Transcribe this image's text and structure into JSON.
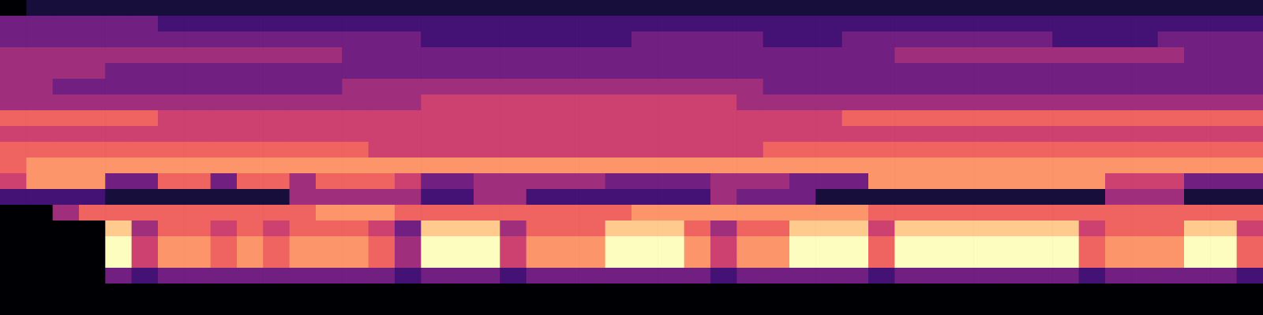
{
  "chart_data": {
    "type": "heatmap",
    "tick_labels": false,
    "zlim": [
      0,
      9
    ],
    "cells": [
      [
        0,
        1,
        1,
        1,
        1,
        1,
        1,
        1,
        1,
        1,
        1,
        1,
        1,
        1,
        1,
        1,
        1,
        1,
        1,
        1,
        1,
        1,
        1,
        1,
        1,
        1,
        1,
        1,
        1,
        1,
        1,
        1,
        1,
        1,
        1,
        1,
        1,
        1,
        1,
        1,
        1,
        1,
        1,
        1,
        1,
        1,
        1,
        1
      ],
      [
        3,
        3,
        3,
        3,
        3,
        3,
        2,
        2,
        2,
        2,
        2,
        2,
        2,
        2,
        2,
        2,
        2,
        2,
        2,
        2,
        2,
        2,
        2,
        2,
        2,
        2,
        2,
        2,
        2,
        2,
        2,
        2,
        2,
        2,
        2,
        2,
        2,
        2,
        2,
        2,
        2,
        2,
        2,
        2,
        2,
        2,
        2,
        2
      ],
      [
        3,
        3,
        3,
        3,
        3,
        3,
        3,
        3,
        3,
        3,
        3,
        3,
        3,
        3,
        3,
        3,
        2,
        2,
        2,
        2,
        2,
        2,
        2,
        2,
        3,
        3,
        3,
        3,
        3,
        2,
        2,
        2,
        3,
        3,
        3,
        3,
        3,
        3,
        3,
        3,
        2,
        2,
        2,
        2,
        3,
        3,
        3,
        3
      ],
      [
        4,
        4,
        4,
        4,
        4,
        4,
        4,
        4,
        4,
        4,
        4,
        4,
        4,
        3,
        3,
        3,
        3,
        3,
        3,
        3,
        3,
        3,
        3,
        3,
        3,
        3,
        3,
        3,
        3,
        3,
        3,
        3,
        3,
        3,
        4,
        4,
        4,
        4,
        4,
        4,
        4,
        4,
        4,
        4,
        4,
        3,
        3,
        3
      ],
      [
        4,
        4,
        4,
        4,
        3,
        3,
        3,
        3,
        3,
        3,
        3,
        3,
        3,
        3,
        3,
        3,
        3,
        3,
        3,
        3,
        3,
        3,
        3,
        3,
        3,
        3,
        3,
        3,
        3,
        3,
        3,
        3,
        3,
        3,
        3,
        3,
        3,
        3,
        3,
        3,
        3,
        3,
        3,
        3,
        3,
        3,
        3,
        3
      ],
      [
        4,
        4,
        3,
        3,
        3,
        3,
        3,
        3,
        3,
        3,
        3,
        3,
        3,
        4,
        4,
        4,
        4,
        4,
        4,
        4,
        4,
        4,
        4,
        4,
        4,
        4,
        4,
        4,
        4,
        3,
        3,
        3,
        3,
        3,
        3,
        3,
        3,
        3,
        3,
        3,
        3,
        3,
        3,
        3,
        3,
        3,
        3,
        3
      ],
      [
        4,
        4,
        4,
        4,
        4,
        4,
        4,
        4,
        4,
        4,
        4,
        4,
        4,
        4,
        4,
        4,
        5,
        5,
        5,
        5,
        5,
        5,
        5,
        5,
        5,
        5,
        5,
        5,
        4,
        4,
        4,
        4,
        4,
        4,
        4,
        4,
        4,
        4,
        4,
        4,
        4,
        4,
        4,
        4,
        4,
        4,
        4,
        4
      ],
      [
        6,
        6,
        6,
        6,
        6,
        6,
        5,
        5,
        5,
        5,
        5,
        5,
        5,
        5,
        5,
        5,
        5,
        5,
        5,
        5,
        5,
        5,
        5,
        5,
        5,
        5,
        5,
        5,
        5,
        5,
        5,
        5,
        6,
        6,
        6,
        6,
        6,
        6,
        6,
        6,
        6,
        6,
        6,
        6,
        6,
        6,
        6,
        6
      ],
      [
        5,
        5,
        5,
        5,
        5,
        5,
        5,
        5,
        5,
        5,
        5,
        5,
        5,
        5,
        5,
        5,
        5,
        5,
        5,
        5,
        5,
        5,
        5,
        5,
        5,
        5,
        5,
        5,
        5,
        5,
        5,
        5,
        5,
        5,
        5,
        5,
        5,
        5,
        5,
        5,
        5,
        5,
        5,
        5,
        5,
        5,
        5,
        5
      ],
      [
        6,
        6,
        6,
        6,
        6,
        6,
        6,
        6,
        6,
        6,
        6,
        6,
        6,
        6,
        5,
        5,
        5,
        5,
        5,
        5,
        5,
        5,
        5,
        5,
        5,
        5,
        5,
        5,
        5,
        6,
        6,
        6,
        6,
        6,
        6,
        6,
        6,
        6,
        6,
        6,
        6,
        6,
        6,
        6,
        6,
        6,
        6,
        6
      ],
      [
        6,
        7,
        7,
        7,
        7,
        7,
        7,
        7,
        7,
        7,
        7,
        7,
        7,
        7,
        7,
        7,
        7,
        7,
        7,
        7,
        7,
        7,
        7,
        7,
        7,
        7,
        7,
        7,
        7,
        7,
        7,
        7,
        7,
        7,
        7,
        7,
        7,
        7,
        7,
        7,
        7,
        7,
        7,
        7,
        7,
        7,
        7,
        7
      ],
      [
        5,
        7,
        7,
        7,
        3,
        3,
        6,
        6,
        3,
        6,
        6,
        4,
        6,
        6,
        6,
        5,
        3,
        3,
        4,
        4,
        4,
        4,
        4,
        3,
        3,
        3,
        3,
        4,
        4,
        4,
        3,
        3,
        3,
        7,
        7,
        7,
        7,
        7,
        7,
        7,
        7,
        7,
        5,
        5,
        5,
        3,
        3,
        3
      ],
      [
        2,
        2,
        2,
        2,
        1,
        1,
        1,
        1,
        1,
        1,
        1,
        4,
        4,
        4,
        4,
        4,
        2,
        2,
        4,
        4,
        2,
        2,
        2,
        2,
        2,
        2,
        2,
        4,
        3,
        3,
        3,
        1,
        1,
        1,
        1,
        1,
        1,
        1,
        1,
        1,
        1,
        1,
        4,
        4,
        4,
        1,
        1,
        1
      ],
      [
        0,
        0,
        4,
        6,
        6,
        6,
        6,
        6,
        6,
        6,
        6,
        6,
        7,
        7,
        7,
        6,
        6,
        6,
        6,
        6,
        6,
        6,
        6,
        6,
        7,
        7,
        7,
        7,
        7,
        7,
        7,
        7,
        7,
        6,
        6,
        6,
        6,
        6,
        6,
        6,
        6,
        6,
        6,
        6,
        6,
        6,
        6,
        6
      ],
      [
        0,
        0,
        0,
        0,
        8,
        4,
        6,
        6,
        5,
        6,
        5,
        6,
        6,
        6,
        5,
        3,
        8,
        8,
        8,
        4,
        6,
        6,
        6,
        8,
        8,
        8,
        6,
        4,
        6,
        6,
        8,
        8,
        8,
        5,
        8,
        8,
        8,
        8,
        8,
        8,
        8,
        5,
        6,
        6,
        6,
        8,
        8,
        5
      ],
      [
        0,
        0,
        0,
        0,
        9,
        5,
        7,
        7,
        6,
        7,
        6,
        7,
        7,
        7,
        6,
        4,
        9,
        9,
        9,
        5,
        7,
        7,
        7,
        9,
        9,
        9,
        7,
        5,
        7,
        7,
        9,
        9,
        9,
        6,
        9,
        9,
        9,
        9,
        9,
        9,
        9,
        6,
        7,
        7,
        7,
        9,
        9,
        6
      ],
      [
        0,
        0,
        0,
        0,
        9,
        5,
        7,
        7,
        6,
        7,
        6,
        7,
        7,
        7,
        6,
        4,
        9,
        9,
        9,
        5,
        7,
        7,
        7,
        9,
        9,
        9,
        7,
        5,
        7,
        7,
        9,
        9,
        9,
        6,
        9,
        9,
        9,
        9,
        9,
        9,
        9,
        6,
        7,
        7,
        7,
        9,
        9,
        6
      ],
      [
        0,
        0,
        0,
        0,
        3,
        2,
        3,
        3,
        3,
        3,
        3,
        3,
        3,
        3,
        3,
        2,
        3,
        3,
        3,
        2,
        3,
        3,
        3,
        3,
        3,
        3,
        3,
        2,
        3,
        3,
        3,
        3,
        3,
        2,
        3,
        3,
        3,
        3,
        3,
        3,
        3,
        2,
        3,
        3,
        3,
        3,
        3,
        2
      ],
      [
        0,
        0,
        0,
        0,
        0,
        0,
        0,
        0,
        0,
        0,
        0,
        0,
        0,
        0,
        0,
        0,
        0,
        0,
        0,
        0,
        0,
        0,
        0,
        0,
        0,
        0,
        0,
        0,
        0,
        0,
        0,
        0,
        0,
        0,
        0,
        0,
        0,
        0,
        0,
        0,
        0,
        0,
        0,
        0,
        0,
        0,
        0,
        0
      ],
      [
        0,
        0,
        0,
        0,
        0,
        0,
        0,
        0,
        0,
        0,
        0,
        0,
        0,
        0,
        0,
        0,
        0,
        0,
        0,
        0,
        0,
        0,
        0,
        0,
        0,
        0,
        0,
        0,
        0,
        0,
        0,
        0,
        0,
        0,
        0,
        0,
        0,
        0,
        0,
        0,
        0,
        0,
        0,
        0,
        0,
        0,
        0,
        0
      ]
    ]
  }
}
